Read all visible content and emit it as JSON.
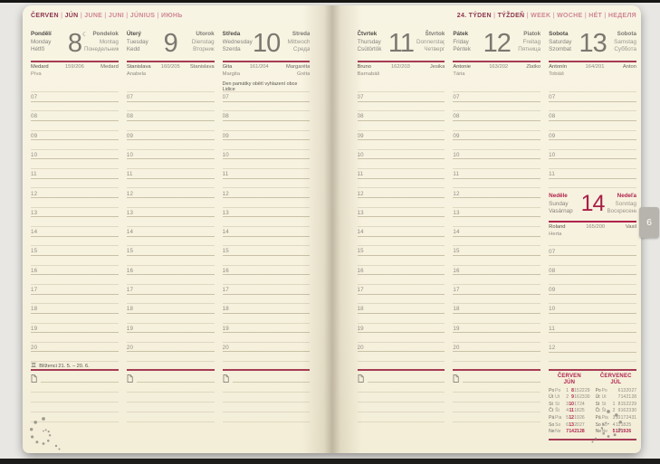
{
  "headers": {
    "left_months": [
      "ČERVEN",
      "JÚN",
      "JUNE",
      "JUNI",
      "JÚNIUS",
      "ИЮНЬ"
    ],
    "right_week": [
      "24. TÝDEN",
      "TÝŽDEŇ",
      "WEEK",
      "WOCHE",
      "HÉT",
      "НЕДЕЛЯ"
    ],
    "separator": "|"
  },
  "colors": {
    "paper": "#f8f3e2",
    "rule_red": "#a63c55",
    "sunday_red": "#b0234c",
    "line_light": "#dfd8c1",
    "line_dark": "#c9c1a6",
    "tab_gray": "#b6b4ac"
  },
  "days": [
    {
      "key": "monday",
      "local_names": [
        "Pondělí",
        "Monday",
        "Hétfő"
      ],
      "number": "8",
      "moon_symbol": "☾",
      "foreign_names": [
        "Pondelok",
        "Montag",
        "Понедельник"
      ],
      "nameday_row": {
        "left": "Medard",
        "count": "159/206",
        "right": "Medard"
      },
      "nameday_row2": {
        "left": "Píva",
        "right": ""
      },
      "note": "",
      "times": [
        "07",
        "08",
        "09",
        "10",
        "11",
        "12",
        "13",
        "14",
        "15",
        "16",
        "17",
        "18",
        "19",
        "20"
      ]
    },
    {
      "key": "tuesday",
      "local_names": [
        "Úterý",
        "Tuesday",
        "Kedd"
      ],
      "number": "9",
      "moon_symbol": "",
      "foreign_names": [
        "Utorok",
        "Dienstag",
        "Вторник"
      ],
      "nameday_row": {
        "left": "Stanislava",
        "count": "160/205",
        "right": "Stanislava"
      },
      "nameday_row2": {
        "left": "Anabela",
        "right": ""
      },
      "note": "",
      "times": [
        "07",
        "08",
        "09",
        "10",
        "11",
        "12",
        "13",
        "14",
        "15",
        "16",
        "17",
        "18",
        "19",
        "20"
      ]
    },
    {
      "key": "wednesday",
      "local_names": [
        "Středa",
        "Wednesday",
        "Szerda"
      ],
      "number": "10",
      "moon_symbol": "",
      "foreign_names": [
        "Streda",
        "Mittwoch",
        "Среда"
      ],
      "nameday_row": {
        "left": "Gita",
        "count": "161/204",
        "right": "Margaréta"
      },
      "nameday_row2": {
        "left": "Margita",
        "right": "Gréta"
      },
      "note": "Den památky obětí vyhlazení obce Lidice",
      "times": [
        "07",
        "08",
        "09",
        "10",
        "11",
        "12",
        "13",
        "14",
        "15",
        "16",
        "17",
        "18",
        "19",
        "20"
      ]
    },
    {
      "key": "thursday",
      "local_names": [
        "Čtvrtek",
        "Thursday",
        "Csütörtök"
      ],
      "number": "11",
      "moon_symbol": "",
      "foreign_names": [
        "Štvrtok",
        "Donnerstag",
        "Четверг"
      ],
      "nameday_row": {
        "left": "Bruno",
        "count": "162/203",
        "right": "Jesika"
      },
      "nameday_row2": {
        "left": "Barnabáš",
        "right": ""
      },
      "note": "",
      "times": [
        "07",
        "08",
        "09",
        "10",
        "11",
        "12",
        "13",
        "14",
        "15",
        "16",
        "17",
        "18",
        "19",
        "20"
      ]
    },
    {
      "key": "friday",
      "local_names": [
        "Pátek",
        "Friday",
        "Péntek"
      ],
      "number": "12",
      "moon_symbol": "",
      "foreign_names": [
        "Piatok",
        "Freitag",
        "Пятница"
      ],
      "nameday_row": {
        "left": "Antonie",
        "count": "163/202",
        "right": "Zlatko"
      },
      "nameday_row2": {
        "left": "Tária",
        "right": ""
      },
      "note": "",
      "times": [
        "07",
        "08",
        "09",
        "10",
        "11",
        "12",
        "13",
        "14",
        "15",
        "16",
        "17",
        "18",
        "19",
        "20"
      ]
    },
    {
      "key": "saturday",
      "local_names": [
        "Sobota",
        "Saturday",
        "Szombat"
      ],
      "number": "13",
      "moon_symbol": "",
      "foreign_names": [
        "Sobota",
        "Samstag",
        "Суббота"
      ],
      "nameday_row": {
        "left": "Antonín",
        "count": "164/201",
        "right": "Anton"
      },
      "nameday_row2": {
        "left": "Tobiáš",
        "right": ""
      },
      "note": "",
      "times": [
        "07",
        "08",
        "09",
        "10",
        "11"
      ]
    },
    {
      "key": "sunday",
      "local_names": [
        "Neděle",
        "Sunday",
        "Vasárnap"
      ],
      "number": "14",
      "moon_symbol": "",
      "foreign_names": [
        "Nedeľa",
        "Sonntag",
        "Воскресенье"
      ],
      "nameday_row": {
        "left": "Roland",
        "count": "165/200",
        "right": "Vasil"
      },
      "nameday_row2": {
        "left": "Herta",
        "right": ""
      },
      "note": "",
      "times": [
        "07",
        "08",
        "09",
        "10",
        "11",
        "12"
      ]
    }
  ],
  "zodiac_row": {
    "symbol": "♊",
    "label": "Blíženci 21. 5. – 20. 6."
  },
  "month_tab": {
    "label": "6"
  },
  "mini_calendars": [
    {
      "title_cz": "ČERVEN",
      "title_sk": "JÚN",
      "highlight_week_col": 1,
      "rows": [
        {
          "cz": "Po",
          "sk": "Po",
          "dates": [
            "1",
            "8",
            "15",
            "22",
            "29"
          ]
        },
        {
          "cz": "Út",
          "sk": "Ut",
          "dates": [
            "2",
            "9",
            "16",
            "23",
            "30"
          ]
        },
        {
          "cz": "St",
          "sk": "St",
          "dates": [
            "3",
            "10",
            "17",
            "24",
            ""
          ]
        },
        {
          "cz": "Čt",
          "sk": "Št",
          "dates": [
            "4",
            "11",
            "18",
            "25",
            ""
          ]
        },
        {
          "cz": "Pá",
          "sk": "Pia",
          "dates": [
            "5",
            "12",
            "19",
            "26",
            ""
          ]
        },
        {
          "cz": "So",
          "sk": "So",
          "dates": [
            "6",
            "13",
            "20",
            "27",
            ""
          ]
        },
        {
          "cz": "Ne",
          "sk": "Ne",
          "dates": [
            "7",
            "14",
            "21",
            "28",
            ""
          ],
          "is_sunday": true
        }
      ]
    },
    {
      "title_cz": "ČERVENEC",
      "title_sk": "JÚL",
      "rows": [
        {
          "cz": "Po",
          "sk": "Po",
          "dates": [
            "",
            "6",
            "13",
            "20",
            "27"
          ]
        },
        {
          "cz": "Út",
          "sk": "Ut",
          "dates": [
            "",
            "7",
            "14",
            "21",
            "28"
          ]
        },
        {
          "cz": "St",
          "sk": "St",
          "dates": [
            "1",
            "8",
            "15",
            "22",
            "29"
          ]
        },
        {
          "cz": "Čt",
          "sk": "Št",
          "dates": [
            "2",
            "9",
            "16",
            "23",
            "30"
          ]
        },
        {
          "cz": "Pá",
          "sk": "Pia",
          "dates": [
            "3",
            "10",
            "17",
            "24",
            "31"
          ]
        },
        {
          "cz": "So",
          "sk": "So",
          "dates": [
            "4",
            "11",
            "18",
            "25",
            ""
          ]
        },
        {
          "cz": "Ne",
          "sk": "Ne",
          "dates": [
            "5",
            "12",
            "19",
            "26",
            ""
          ],
          "is_sunday": true
        }
      ]
    }
  ]
}
